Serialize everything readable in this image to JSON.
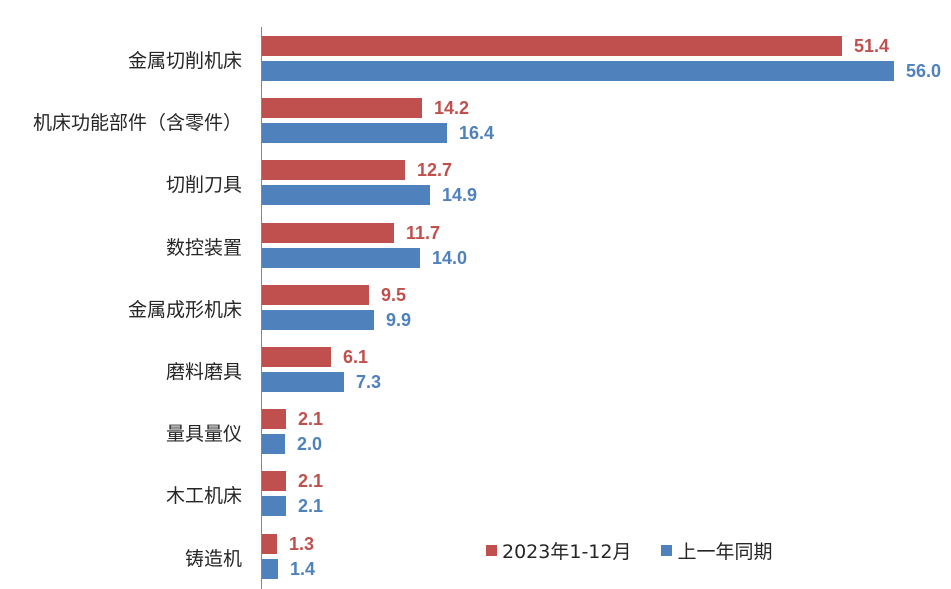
{
  "chart_data": {
    "type": "bar",
    "orientation": "horizontal",
    "title": "",
    "xlabel": "",
    "ylabel": "",
    "categories": [
      "金属切削机床",
      "机床功能部件（含零件）",
      "切削刀具",
      "数控装置",
      "金属成形机床",
      "磨料磨具",
      "量具量仪",
      "木工机床",
      "铸造机"
    ],
    "series": [
      {
        "name": "2023年1-12月",
        "color": "#C0504D",
        "values": [
          51.4,
          14.2,
          12.7,
          11.7,
          9.5,
          6.1,
          2.1,
          2.1,
          1.3
        ]
      },
      {
        "name": "上一年同期",
        "color": "#4F81BD",
        "values": [
          56.0,
          16.4,
          14.9,
          14.0,
          9.9,
          7.3,
          2.0,
          2.1,
          1.4
        ]
      }
    ],
    "xlim": [
      0,
      56
    ],
    "grid": false,
    "data_labels": true,
    "legend_position": "bottom-right-inside"
  },
  "legend": {
    "items": [
      {
        "label": "2023年1-12月",
        "color": "#C0504D"
      },
      {
        "label": "上一年同期",
        "color": "#4F81BD"
      }
    ]
  }
}
